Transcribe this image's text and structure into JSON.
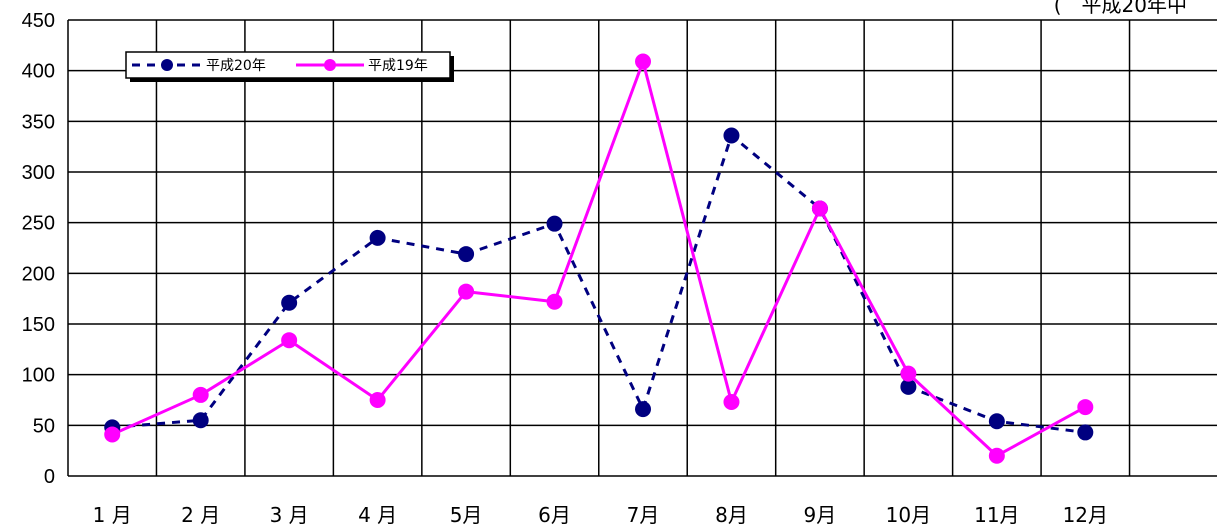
{
  "corner_note": "(　平成20年中",
  "chart_data": {
    "type": "line",
    "categories": [
      "1 月",
      "2 月",
      "3 月",
      "4 月",
      "5月",
      "6月",
      "7月",
      "8月",
      "9月",
      "10月",
      "11月",
      "12月"
    ],
    "ylim": [
      0,
      450
    ],
    "yticks": [
      0,
      50,
      100,
      150,
      200,
      250,
      300,
      350,
      400,
      450
    ],
    "grid": true,
    "legend_position": "top-left",
    "series": [
      {
        "name": "平成20年",
        "values": [
          48,
          55,
          171,
          235,
          219,
          249,
          66,
          336,
          264,
          88,
          54,
          43
        ],
        "color": "#000080",
        "line_style": "dashed",
        "marker": "circle"
      },
      {
        "name": "平成19年",
        "values": [
          41,
          80,
          134,
          75,
          182,
          172,
          409,
          73,
          264,
          101,
          20,
          68
        ],
        "color": "#ff00ff",
        "line_style": "solid",
        "marker": "circle"
      }
    ]
  }
}
